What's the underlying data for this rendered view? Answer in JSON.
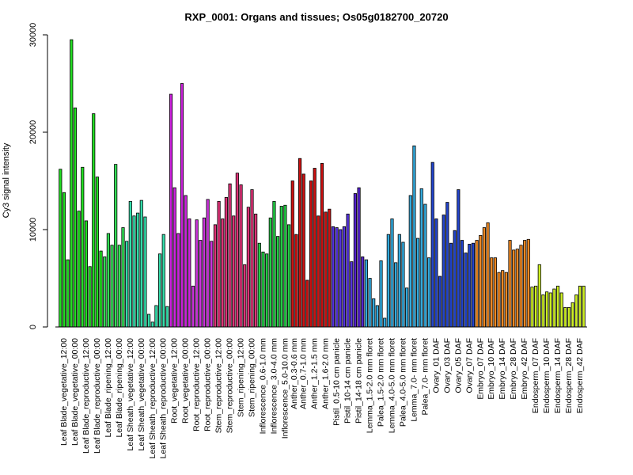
{
  "chart_data": {
    "type": "bar",
    "title": "RXP_0001: Organs and tissues; Os05g0182700_20720",
    "xlabel": "",
    "ylabel": "Cy3 signal intensity",
    "ylim": [
      0,
      30000
    ],
    "yticks": [
      0,
      10000,
      20000,
      30000
    ],
    "grid": false,
    "legend": "none",
    "groups": [
      {
        "label": "Leaf Blade_vegetative_12:00",
        "color": "#22dd22",
        "values": [
          16200,
          13800,
          6900
        ]
      },
      {
        "label": "Leaf Blade_vegetative_00:00",
        "color": "#22dd22",
        "values": [
          29500,
          22500,
          11900
        ]
      },
      {
        "label": "Leaf Blade_reproductive_12:00",
        "color": "#22dd22",
        "values": [
          16400,
          10900,
          6200
        ]
      },
      {
        "label": "Leaf Blade_reproductive_00:00",
        "color": "#22dd22",
        "values": [
          21900,
          15400,
          7800
        ]
      },
      {
        "label": "Leaf Blade_ripening_12:00",
        "color": "#33dd55",
        "values": [
          7200,
          9600,
          8400
        ]
      },
      {
        "label": "Leaf Blade_ripening_00:00",
        "color": "#33dd55",
        "values": [
          16700,
          8400,
          10200
        ]
      },
      {
        "label": "Leaf Sheath_vegetative_12:00",
        "color": "#33ddaa",
        "values": [
          8800,
          12900,
          11400
        ]
      },
      {
        "label": "Leaf Sheath_vegetative_00:00",
        "color": "#33ddaa",
        "values": [
          11700,
          13000,
          11300
        ]
      },
      {
        "label": "Leaf Sheath_reproductive_12:00",
        "color": "#33ddaa",
        "values": [
          1300,
          500,
          2200
        ]
      },
      {
        "label": "Leaf Sheath_reproductive_00:00",
        "color": "#33ddaa",
        "values": [
          7500,
          9500,
          2100
        ]
      },
      {
        "label": "Root_vegetative_12:00",
        "color": "#cc22dd",
        "values": [
          23900,
          14300,
          9600
        ]
      },
      {
        "label": "Root_vegetative_00:00",
        "color": "#cc22dd",
        "values": [
          25000,
          13500,
          11100
        ]
      },
      {
        "label": "Root_reproductive_12:00",
        "color": "#cc33dd",
        "values": [
          4200,
          11000,
          8900
        ]
      },
      {
        "label": "Root_reproductive_00:00",
        "color": "#cc33dd",
        "values": [
          11200,
          13100,
          8800
        ]
      },
      {
        "label": "Stem_reproductive_12:00",
        "color": "#dd3377",
        "values": [
          10500,
          12900,
          11100
        ]
      },
      {
        "label": "Stem_reproductive_00:00",
        "color": "#dd3377",
        "values": [
          13300,
          14700,
          11400
        ]
      },
      {
        "label": "Stem_ripening_12:00",
        "color": "#dd3377",
        "values": [
          15800,
          14600,
          6400
        ]
      },
      {
        "label": "Stem_ripening_00:00",
        "color": "#dd3377",
        "values": [
          12300,
          14100,
          11600
        ]
      },
      {
        "label": "Inflorescence_0.6-1.0 mm",
        "color": "#22cc44",
        "values": [
          8600,
          7700,
          7500
        ]
      },
      {
        "label": "Inflorescence_3.0-4.0 mm",
        "color": "#22cc44",
        "values": [
          11200,
          12900,
          9300
        ]
      },
      {
        "label": "Inflorescence_5.0-10.0 mm",
        "color": "#22cc44",
        "values": [
          12400,
          12500,
          10500
        ]
      },
      {
        "label": "Anther_0.3-0.6 mm",
        "color": "#cc1111",
        "values": [
          15000,
          9500
        ]
      },
      {
        "label": "Anther_0.7-1.0 mm",
        "color": "#cc1111",
        "values": [
          17300,
          15700,
          4800
        ]
      },
      {
        "label": "Anther_1.2-1.5 mm",
        "color": "#cc1111",
        "values": [
          15000,
          16300,
          11400
        ]
      },
      {
        "label": "Anther_1.6-2.0 mm",
        "color": "#cc1111",
        "values": [
          16800,
          11800,
          12100
        ]
      },
      {
        "label": "Pistil_0.5-10 cm panicle",
        "color": "#5533dd",
        "values": [
          10300,
          10200,
          10000
        ]
      },
      {
        "label": "Pistil_10-14 cm panicle",
        "color": "#5533dd",
        "values": [
          10300,
          11600,
          6700
        ]
      },
      {
        "label": "Pistil_14-18 cm panicle",
        "color": "#5522cc",
        "values": [
          13700,
          14300,
          7200
        ]
      },
      {
        "label": "Lemma_1.5-2.0 mm floret",
        "color": "#33aadd",
        "values": [
          6900,
          5000,
          2900
        ]
      },
      {
        "label": "Palea_1.5-2.0 mm floret",
        "color": "#33aadd",
        "values": [
          2200,
          6800,
          900
        ]
      },
      {
        "label": "Lemma_4.0-5.0 mm floret",
        "color": "#33aadd",
        "values": [
          9500,
          11100,
          6600
        ]
      },
      {
        "label": "Palea_4.0-5.0 mm floret",
        "color": "#33aadd",
        "values": [
          9500,
          8700,
          4000
        ]
      },
      {
        "label": "Lemma_7.0- mm floret",
        "color": "#33aadd",
        "values": [
          13500,
          18600,
          9100
        ]
      },
      {
        "label": "Palea_7.0- mm floret",
        "color": "#33aadd",
        "values": [
          14200,
          12600,
          7100
        ]
      },
      {
        "label": "Ovary_01 DAF",
        "color": "#2244cc",
        "values": [
          16900,
          11100,
          5200
        ]
      },
      {
        "label": "Ovary_03 DAF",
        "color": "#2244cc",
        "values": [
          11500,
          12800,
          8600
        ]
      },
      {
        "label": "Ovary_05 DAF",
        "color": "#2244cc",
        "values": [
          9900,
          14100,
          8900
        ]
      },
      {
        "label": "Ovary_07 DAF",
        "color": "#2244cc",
        "values": [
          7600,
          8500,
          8600
        ]
      },
      {
        "label": "Embryo_07 DAF",
        "color": "#ee8822",
        "values": [
          8900,
          9400,
          10200
        ]
      },
      {
        "label": "Embryo_10 DAF",
        "color": "#ee8822",
        "values": [
          10700,
          7100,
          7100
        ]
      },
      {
        "label": "Embryo_14 DAF",
        "color": "#ee8822",
        "values": [
          5600,
          5800,
          5600
        ]
      },
      {
        "label": "Embryo_28 DAF",
        "color": "#ee8822",
        "values": [
          8900,
          7900,
          8000
        ]
      },
      {
        "label": "Embryo_42 DAF",
        "color": "#ee8822",
        "values": [
          8400,
          8900,
          9000
        ]
      },
      {
        "label": "Endosperm_07 DAF",
        "color": "#ccee22",
        "values": [
          4100,
          4200,
          6400
        ]
      },
      {
        "label": "Endosperm_10 DAF",
        "color": "#ccee22",
        "values": [
          3300,
          3600,
          3500
        ]
      },
      {
        "label": "Endosperm_14 DAF",
        "color": "#ccee22",
        "values": [
          3900,
          4200,
          3500
        ]
      },
      {
        "label": "Endosperm_28 DAF",
        "color": "#ccee22",
        "values": [
          2000,
          2000,
          2500
        ]
      },
      {
        "label": "Endosperm_42 DAF",
        "color": "#ccee22",
        "values": [
          3300,
          4200,
          4200
        ]
      }
    ]
  }
}
